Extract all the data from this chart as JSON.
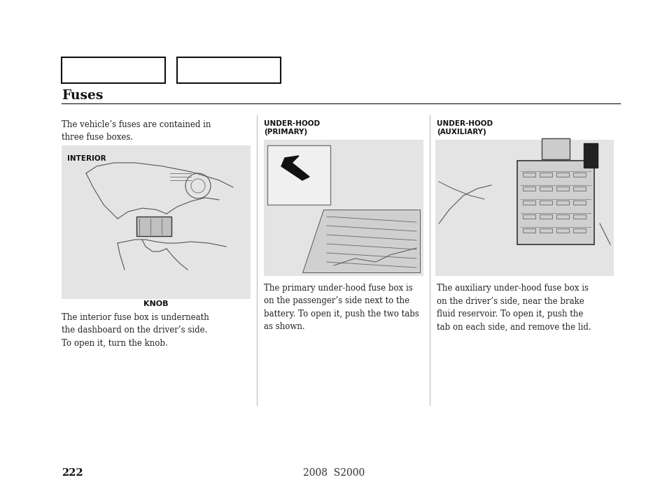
{
  "title": "Fuses",
  "page_number": "222",
  "center_text": "2008  S2000",
  "bg_color": "#ffffff",
  "box_outline_color": "#000000",
  "section_bg_color": "#e4e4e4",
  "intro_text": "The vehicle’s fuses are contained in\nthree fuse boxes.",
  "col1_label": "INTERIOR",
  "col1_knob_label": "KNOB",
  "col1_desc": "The interior fuse box is underneath\nthe dashboard on the driver’s side.\nTo open it, turn the knob.",
  "col2_label": "UNDER-HOOD\n(PRIMARY)",
  "col2_desc": "The primary under-hood fuse box is\non the passenger’s side next to the\nbattery. To open it, push the two tabs\nas shown.",
  "col3_label": "UNDER-HOOD\n(AUXILIARY)",
  "col3_desc": "The auxiliary under-hood fuse box is\non the driver’s side, near the brake\nfluid reservoir. To open it, push the\ntab on each side, and remove the lid."
}
